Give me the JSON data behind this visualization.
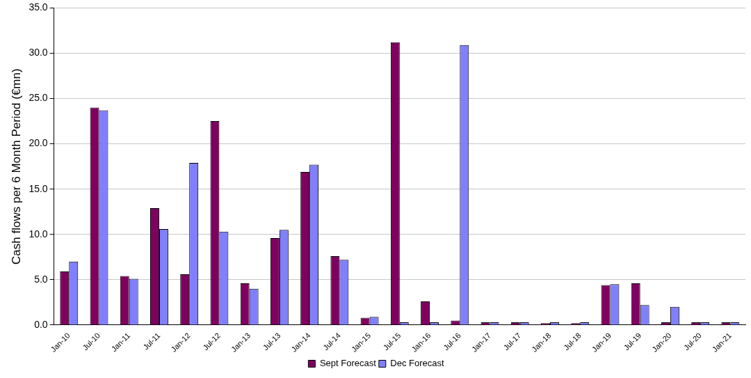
{
  "chart_data": {
    "type": "bar",
    "ylabel": "Cash flows per 6 Month Period (€mn)",
    "categories": [
      "Jan-10",
      "Jul-10",
      "Jan-11",
      "Jul-11",
      "Jan-12",
      "Jul-12",
      "Jan-13",
      "Jul-13",
      "Jan-14",
      "Jul-14",
      "Jan-15",
      "Jul-15",
      "Jan-16",
      "Jul-16",
      "Jan-17",
      "Jul-17",
      "Jan-18",
      "Jul-18",
      "Jan-19",
      "Jul-19",
      "Jan-20",
      "Jul-20",
      "Jan-21"
    ],
    "series": [
      {
        "name": "Sept Forecast",
        "color": "#800060",
        "values": [
          5.9,
          24.0,
          5.4,
          12.9,
          5.6,
          22.5,
          4.6,
          9.6,
          16.9,
          7.6,
          0.8,
          31.2,
          2.6,
          0.5,
          0.3,
          0.3,
          0.2,
          0.2,
          4.4,
          4.6,
          0.3,
          0.3,
          0.3
        ]
      },
      {
        "name": "Dec Forecast",
        "color": "#8080ff",
        "values": [
          7.0,
          23.7,
          5.1,
          10.6,
          17.9,
          10.3,
          4.0,
          10.5,
          17.7,
          7.2,
          0.9,
          0.3,
          0.3,
          30.9,
          0.3,
          0.3,
          0.3,
          0.3,
          4.5,
          2.2,
          2.0,
          0.3,
          0.3
        ]
      }
    ],
    "ylim": [
      0,
      35
    ],
    "yticks": [
      {
        "value": 0,
        "label": "0.0"
      },
      {
        "value": 5,
        "label": "5.0"
      },
      {
        "value": 10,
        "label": "10.0"
      },
      {
        "value": 15,
        "label": "15.0"
      },
      {
        "value": 20,
        "label": "20.0"
      },
      {
        "value": 25,
        "label": "25.0"
      },
      {
        "value": 30,
        "label": "30.0"
      },
      {
        "value": 35,
        "label": "35.0"
      }
    ],
    "grid": "y",
    "legend": "bottom"
  }
}
